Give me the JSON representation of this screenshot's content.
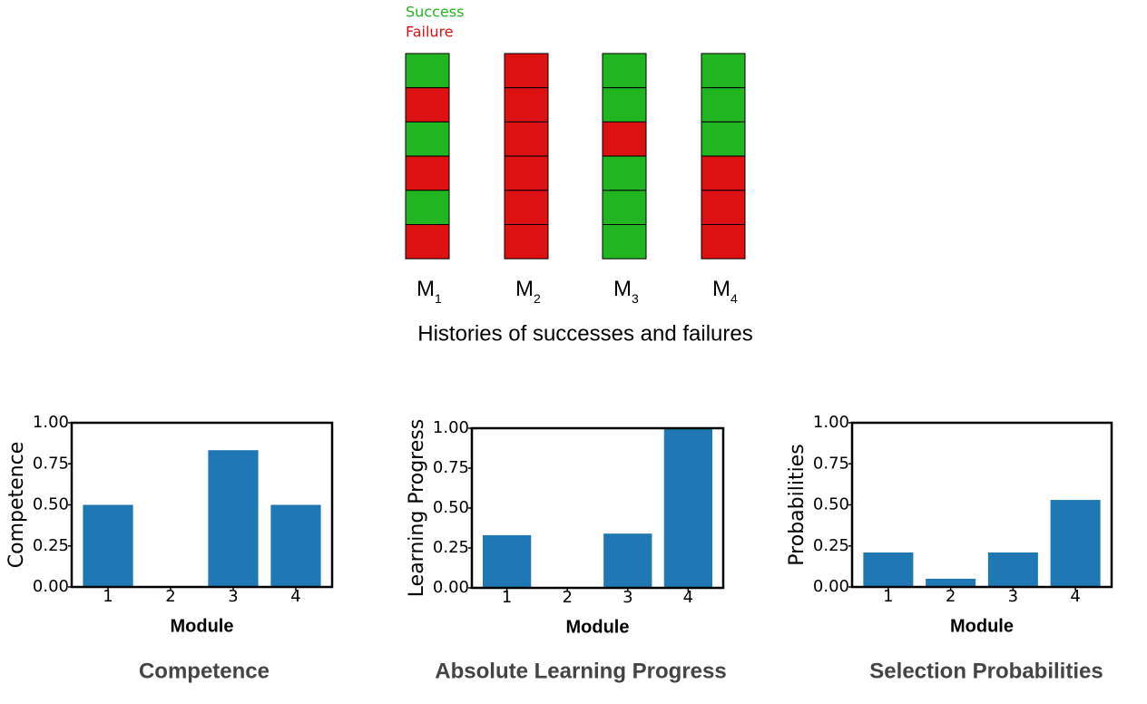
{
  "histories": {
    "legend": [
      {
        "name": "Success",
        "color": "#22b522"
      },
      {
        "name": "Failure",
        "color": "#dd1111"
      }
    ],
    "modules": [
      {
        "name": "M",
        "subscript": "1",
        "outcomes": [
          "Success",
          "Failure",
          "Success",
          "Failure",
          "Success",
          "Failure"
        ]
      },
      {
        "name": "M",
        "subscript": "2",
        "outcomes": [
          "Failure",
          "Failure",
          "Failure",
          "Failure",
          "Failure",
          "Failure"
        ]
      },
      {
        "name": "M",
        "subscript": "3",
        "outcomes": [
          "Success",
          "Success",
          "Failure",
          "Success",
          "Success",
          "Success"
        ]
      },
      {
        "name": "M",
        "subscript": "4",
        "outcomes": [
          "Success",
          "Success",
          "Success",
          "Failure",
          "Failure",
          "Failure"
        ]
      }
    ],
    "caption": "Histories of successes and failures"
  },
  "chart_data": [
    {
      "type": "bar",
      "title": "Competence",
      "xlabel": "Module",
      "ylabel": "Competence",
      "categories": [
        "1",
        "2",
        "3",
        "4"
      ],
      "values": [
        0.5,
        0,
        0.833,
        0.5
      ],
      "color": "#1f77b4",
      "ylim": [
        0,
        1
      ],
      "yticks": [
        {
          "value": 0,
          "label": "0.00"
        },
        {
          "value": 0.25,
          "label": "0.25"
        },
        {
          "value": 0.5,
          "label": "0.50"
        },
        {
          "value": 0.75,
          "label": "0.75"
        },
        {
          "value": 1,
          "label": "1.00"
        }
      ]
    },
    {
      "type": "bar",
      "title": "Absolute Learning Progress",
      "xlabel": "Module",
      "ylabel": "Learning Progress",
      "categories": [
        "1",
        "2",
        "3",
        "4"
      ],
      "values": [
        0.33,
        0,
        0.34,
        1.0
      ],
      "color": "#1f77b4",
      "ylim": [
        0,
        1
      ],
      "yticks": [
        {
          "value": 0,
          "label": "0.00"
        },
        {
          "value": 0.25,
          "label": "0.25"
        },
        {
          "value": 0.5,
          "label": "0.50"
        },
        {
          "value": 0.75,
          "label": "0.75"
        },
        {
          "value": 1,
          "label": "1.00"
        }
      ]
    },
    {
      "type": "bar",
      "title": "Selection Probabilities",
      "xlabel": "Module",
      "ylabel": "Probabilities",
      "categories": [
        "1",
        "2",
        "3",
        "4"
      ],
      "values": [
        0.21,
        0.05,
        0.21,
        0.53
      ],
      "color": "#1f77b4",
      "ylim": [
        0,
        1
      ],
      "yticks": [
        {
          "value": 0,
          "label": "0.00"
        },
        {
          "value": 0.25,
          "label": "0.25"
        },
        {
          "value": 0.5,
          "label": "0.50"
        },
        {
          "value": 0.75,
          "label": "0.75"
        },
        {
          "value": 1,
          "label": "1.00"
        }
      ]
    }
  ]
}
